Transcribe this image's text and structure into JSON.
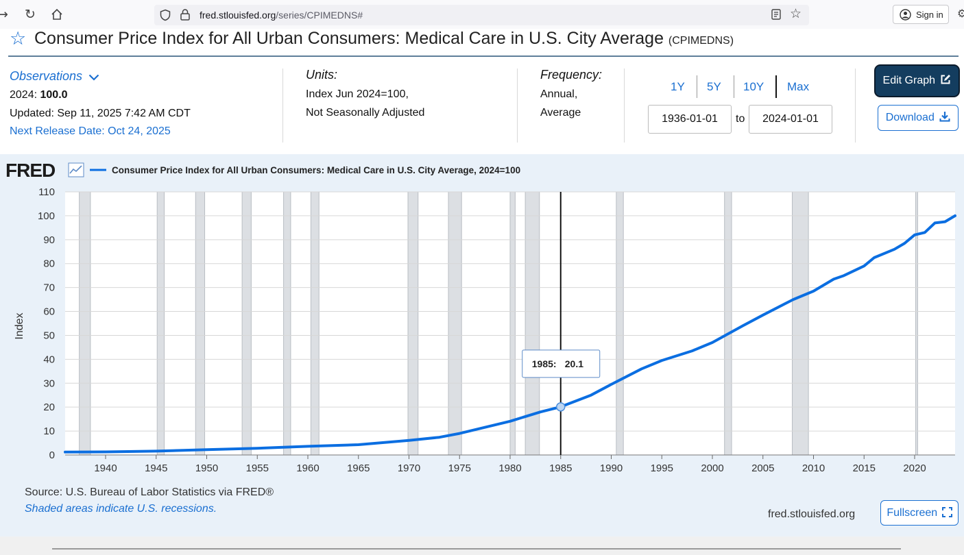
{
  "browser": {
    "url_host": "fred.stlouisfed.org",
    "url_path": "/series/CPIMEDNS#",
    "signin_label": "Sign in"
  },
  "title": {
    "main": "Consumer Price Index for All Urban Consumers: Medical Care in U.S. City Average",
    "code": "(CPIMEDNS)"
  },
  "observations": {
    "label": "Observations",
    "year": "2024:",
    "value": "100.0",
    "updated": "Updated: Sep 11, 2025 7:42 AM CDT",
    "next_release": "Next Release Date: Oct 24, 2025"
  },
  "units": {
    "label": "Units:",
    "line1": "Index Jun 2024=100,",
    "line2": "Not Seasonally Adjusted"
  },
  "frequency": {
    "label": "Frequency:",
    "line1": "Annual,",
    "line2": "Average"
  },
  "range": {
    "buttons": [
      "1Y",
      "5Y",
      "10Y",
      "Max"
    ],
    "start": "1936-01-01",
    "to_label": "to",
    "end": "2024-01-01"
  },
  "actions": {
    "edit_label": "Edit Graph",
    "download_label": "Download"
  },
  "colors": {
    "line": "#0b6ee1",
    "recession": "#dcdfe3",
    "accent": "#1a6fd1",
    "dark_button": "#143d5f"
  },
  "chart_data": {
    "type": "line",
    "logo": "FRED",
    "title": "Consumer Price Index for All Urban Consumers: Medical Care in U.S. City Average, 2024=100",
    "xlabel": "",
    "ylabel": "Index",
    "xlim": [
      1936,
      2024
    ],
    "ylim": [
      0,
      110
    ],
    "x_ticks": [
      1940,
      1945,
      1950,
      1955,
      1960,
      1965,
      1970,
      1975,
      1980,
      1985,
      1990,
      1995,
      2000,
      2005,
      2010,
      2015,
      2020
    ],
    "y_ticks": [
      0,
      10,
      20,
      30,
      40,
      50,
      60,
      70,
      80,
      90,
      100,
      110
    ],
    "recessions": [
      [
        1937.4,
        1938.5
      ],
      [
        1945.1,
        1945.8
      ],
      [
        1948.9,
        1949.8
      ],
      [
        1953.5,
        1954.4
      ],
      [
        1957.6,
        1958.3
      ],
      [
        1960.3,
        1961.1
      ],
      [
        1969.9,
        1970.9
      ],
      [
        1973.9,
        1975.2
      ],
      [
        1980.0,
        1980.5
      ],
      [
        1981.5,
        1982.9
      ],
      [
        1990.5,
        1991.2
      ],
      [
        2001.2,
        2001.9
      ],
      [
        2007.9,
        2009.5
      ],
      [
        2020.1,
        2020.3
      ]
    ],
    "series": [
      {
        "name": "Consumer Price Index for All Urban Consumers: Medical Care in U.S. City Average, 2024=100",
        "x": [
          1936,
          1940,
          1945,
          1950,
          1955,
          1960,
          1965,
          1970,
          1973,
          1975,
          1980,
          1983,
          1985,
          1988,
          1990,
          1993,
          1995,
          1998,
          2000,
          2003,
          2005,
          2008,
          2010,
          2012,
          2013,
          2015,
          2016,
          2018,
          2019,
          2020,
          2021,
          2022,
          2023,
          2024
        ],
        "y": [
          1.2,
          1.3,
          1.6,
          2.2,
          2.8,
          3.6,
          4.3,
          6.1,
          7.4,
          9.0,
          14.1,
          18.0,
          20.1,
          25.0,
          29.5,
          36.0,
          39.5,
          43.5,
          47.0,
          54.0,
          58.5,
          65.0,
          68.5,
          73.5,
          75.0,
          79.0,
          82.5,
          86.0,
          88.5,
          92.0,
          93.0,
          97.0,
          97.5,
          100.0
        ]
      }
    ],
    "tooltip": {
      "year": "1985:",
      "value": "20.1",
      "x": 1985,
      "y": 20.1
    },
    "source": "Source: U.S. Bureau of Labor Statistics via FRED®",
    "note": "Shaded areas indicate U.S. recessions.",
    "site": "fred.stlouisfed.org"
  },
  "fullscreen_label": "Fullscreen"
}
